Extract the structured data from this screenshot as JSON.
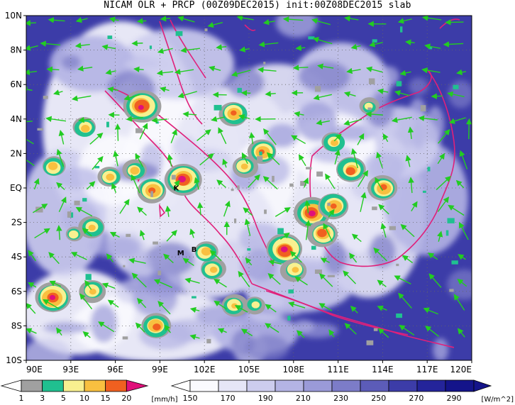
{
  "title": "NICAM OLR + PRCP (00Z09DEC2015) init:00Z08DEC2015 slab",
  "map": {
    "lat_labels": [
      "10N",
      "8N",
      "6N",
      "4N",
      "2N",
      "EQ",
      "2S",
      "4S",
      "6S",
      "8S",
      "10S"
    ],
    "lon_labels": [
      "90E",
      "93E",
      "96E",
      "99E",
      "102E",
      "105E",
      "108E",
      "111E",
      "114E",
      "117E",
      "120E"
    ],
    "lat_range": [
      -10,
      10
    ],
    "lon_range": [
      90,
      120
    ],
    "grid": "dotted",
    "coastline_color": "#e0207a",
    "wind_vector_color": "#22cc22",
    "place_labels": [
      {
        "text": "K",
        "lon": 100.1,
        "lat": -0.15
      },
      {
        "text": "M",
        "lon": 100.4,
        "lat": -3.9
      },
      {
        "text": "B",
        "lon": 101.3,
        "lat": -3.7
      }
    ]
  },
  "precip_colorbar": {
    "labels": [
      "1",
      "3",
      "5",
      "10",
      "15",
      "20"
    ],
    "unit": "[mm/h]",
    "colors": [
      "#a0a0a0",
      "#20c090",
      "#f8f090",
      "#f8c040",
      "#f06020",
      "#e0107a"
    ]
  },
  "olr_colorbar": {
    "labels": [
      "150",
      "170",
      "190",
      "210",
      "230",
      "250",
      "270",
      "290"
    ],
    "unit": "[W/m^2]",
    "colors": [
      "#fafafe",
      "#e6e6f6",
      "#cdcdee",
      "#b4b4e4",
      "#9a9ad8",
      "#7c7cc8",
      "#5c5cb8",
      "#3c3ca8",
      "#24249a",
      "#14148a"
    ]
  }
}
